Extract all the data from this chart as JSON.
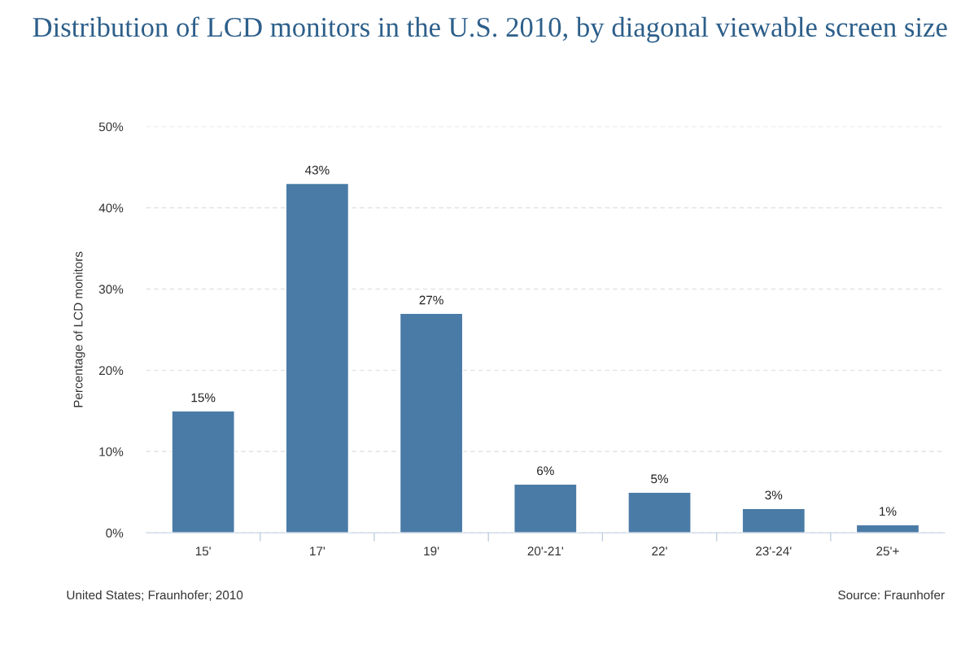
{
  "chart_data": {
    "type": "bar",
    "title": "Distribution of LCD monitors in the U.S. 2010, by diagonal viewable screen size",
    "ylabel": "Percentage of LCD monitors",
    "categories": [
      "15'",
      "17'",
      "19'",
      "20'-21'",
      "22'",
      "23'-24'",
      "25'+"
    ],
    "values": [
      15,
      43,
      27,
      6,
      5,
      3,
      1
    ],
    "value_labels": [
      "15%",
      "43%",
      "27%",
      "6%",
      "5%",
      "3%",
      "1%"
    ],
    "color": "#4a7ba6",
    "ylim": [
      0,
      50
    ],
    "yticks": [
      {
        "value": 0,
        "label": "0%"
      },
      {
        "value": 10,
        "label": "10%"
      },
      {
        "value": 20,
        "label": "20%"
      },
      {
        "value": 30,
        "label": "30%"
      },
      {
        "value": 40,
        "label": "40%"
      },
      {
        "value": 50,
        "label": "50%"
      }
    ],
    "grid": "y",
    "annotations": [
      "United States; Fraunhofer; 2010",
      "Source: Fraunhofer"
    ]
  }
}
